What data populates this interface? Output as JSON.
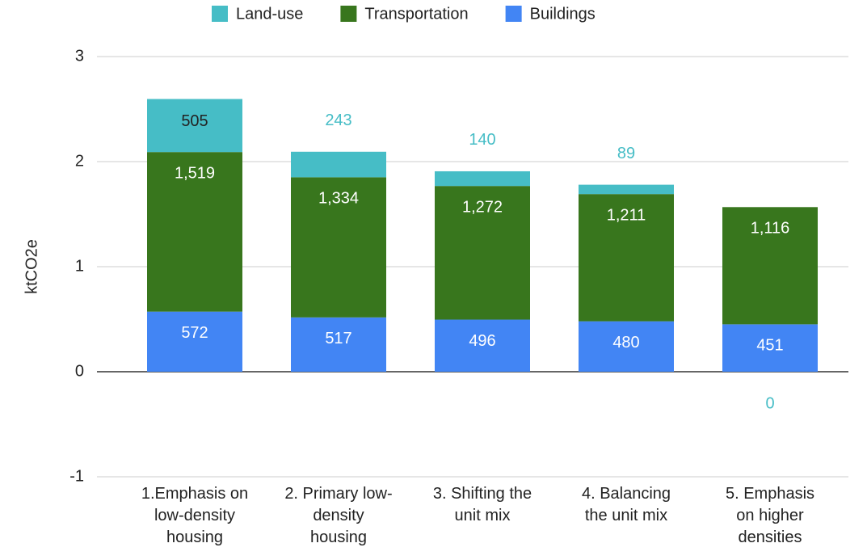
{
  "chart_data": {
    "type": "stacked_bar",
    "y_label": "ktCO2e",
    "categories": [
      [
        "1.Emphasis on",
        "low-density",
        "housing"
      ],
      [
        "2. Primary low-",
        "density",
        "housing"
      ],
      [
        "3. Shifting the",
        "unit mix"
      ],
      [
        "4. Balancing",
        "the unit mix"
      ],
      [
        "5. Emphasis",
        "on higher",
        "densities"
      ]
    ],
    "series": [
      {
        "name": "Buildings",
        "color": "#4285f4",
        "values": [
          0.572,
          0.517,
          0.496,
          0.48,
          0.451
        ],
        "value_labels": [
          "572",
          "517",
          "496",
          "480",
          "451"
        ]
      },
      {
        "name": "Transportation",
        "color": "#38761d",
        "values": [
          1.519,
          1.334,
          1.272,
          1.211,
          1.116
        ],
        "value_labels": [
          "1,519",
          "1,334",
          "1,272",
          "1,211",
          "1,116"
        ]
      },
      {
        "name": "Land-use",
        "color": "#46bdc6",
        "values": [
          0.505,
          0.243,
          0.14,
          0.089,
          0
        ],
        "value_labels": [
          "505",
          "243",
          "140",
          "89",
          "0"
        ]
      }
    ],
    "legend_order": [
      2,
      1,
      0
    ],
    "ylim": [
      -1,
      3
    ],
    "yticks": [
      -1,
      0,
      1,
      2,
      3
    ],
    "grid": true
  }
}
